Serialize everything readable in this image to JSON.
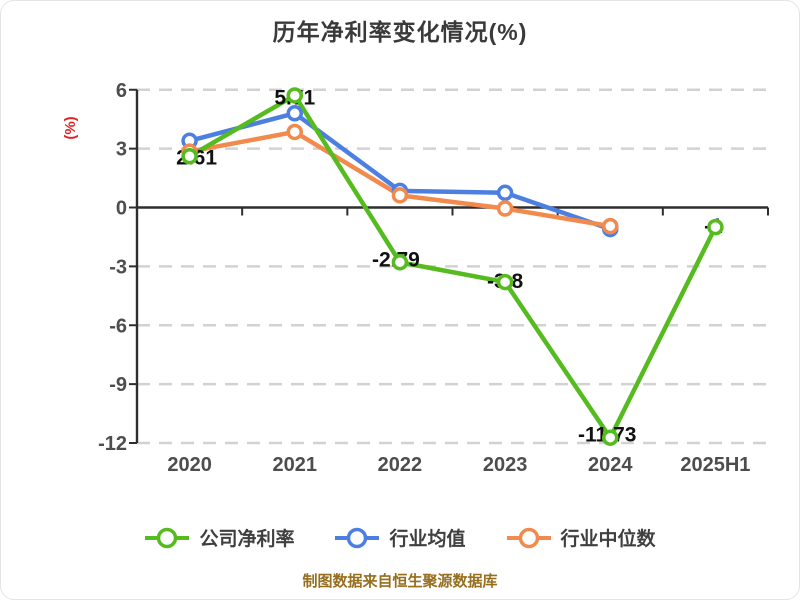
{
  "title": "历年净利率变化情况(%)",
  "y_axis_name": "(%)",
  "footer": "制图数据来自恒生聚源数据库",
  "colors": {
    "company": "#55bb1f",
    "industry_avg": "#4d7fe0",
    "industry_median": "#f38a4d",
    "axis": "#2e2e2e",
    "grid": "#d2d2d2",
    "tick_label": "#4d4d4d",
    "data_label": "#111111",
    "title_text": "#3a3a3a",
    "y_name_text": "#e02626",
    "footer_text": "#966e1e",
    "marker_fill": "#ffffff",
    "background": "#ffffff"
  },
  "chart_data": {
    "type": "line",
    "title": "历年净利率变化情况(%)",
    "categories": [
      "2020",
      "2021",
      "2022",
      "2023",
      "2024",
      "2025H1"
    ],
    "xlabel": "",
    "ylabel": "(%)",
    "ylim": [
      -12,
      6
    ],
    "y_ticks": [
      6,
      3,
      0,
      -3,
      -6,
      -9,
      -12
    ],
    "grid": "horizontal-dashed",
    "legend_position": "bottom",
    "series": [
      {
        "id": "company-net-margin",
        "name": "公司净利率",
        "color": "#55bb1f",
        "values": [
          2.61,
          5.71,
          -2.79,
          -3.8,
          -11.73,
          -1
        ],
        "point_labels": [
          "2.61",
          "5.71",
          "-2.79",
          "-3.8",
          "-11.73",
          "-1"
        ],
        "label_offsets": [
          [
            7,
            8
          ],
          [
            0,
            9
          ],
          [
            -4,
            4
          ],
          [
            0,
            6
          ],
          [
            -3,
            4
          ],
          [
            -2,
            6
          ]
        ]
      },
      {
        "id": "industry-average",
        "name": "行业均值",
        "color": "#4d7fe0",
        "values": [
          3.4,
          4.8,
          0.85,
          0.75,
          -1.1
        ]
      },
      {
        "id": "industry-median",
        "name": "行业中位数",
        "color": "#f38a4d",
        "values": [
          2.85,
          3.85,
          0.62,
          -0.05,
          -0.95
        ]
      }
    ]
  }
}
